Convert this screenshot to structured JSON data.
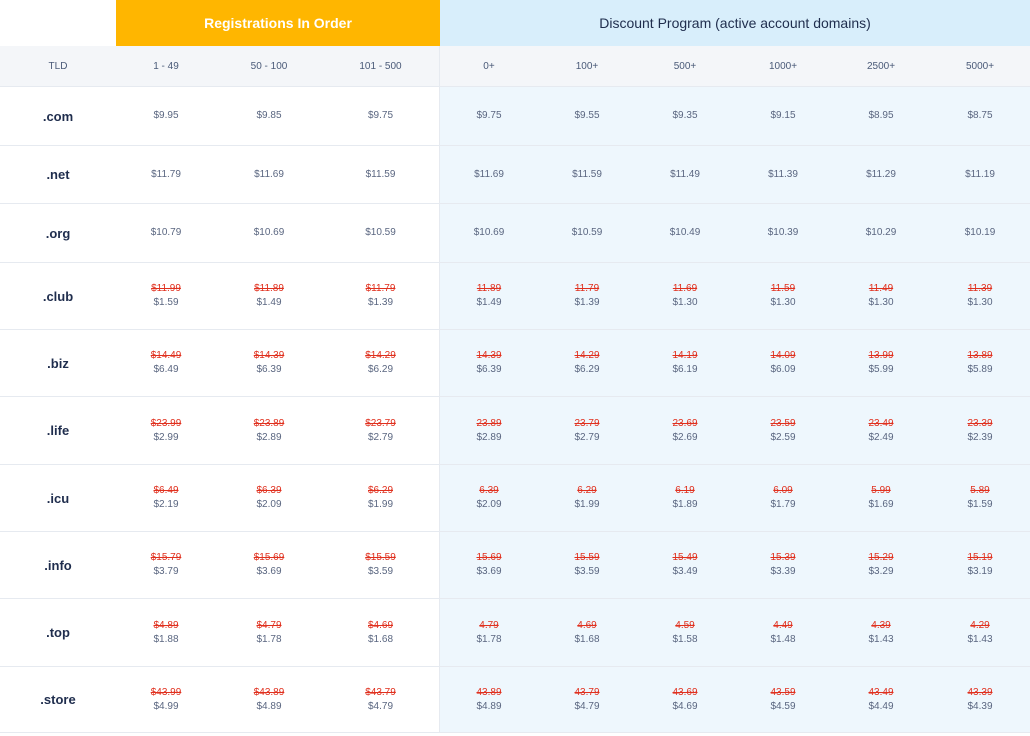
{
  "header": {
    "registrations_label": "Registrations In Order",
    "discount_label": "Discount Program (active account domains)"
  },
  "columns": [
    "TLD",
    "1 - 49",
    "50 - 100",
    "101 - 500",
    "0+",
    "100+",
    "500+",
    "1000+",
    "2500+",
    "5000+"
  ],
  "rows": [
    {
      "tld": ".com",
      "h": 59,
      "prices": [
        {
          "new": "$9.95"
        },
        {
          "new": "$9.85"
        },
        {
          "new": "$9.75"
        },
        {
          "new": "$9.75"
        },
        {
          "new": "$9.55"
        },
        {
          "new": "$9.35"
        },
        {
          "new": "$9.15"
        },
        {
          "new": "$8.95"
        },
        {
          "new": "$8.75"
        }
      ]
    },
    {
      "tld": ".net",
      "h": 58,
      "prices": [
        {
          "new": "$11.79"
        },
        {
          "new": "$11.69"
        },
        {
          "new": "$11.59"
        },
        {
          "new": "$11.69"
        },
        {
          "new": "$11.59"
        },
        {
          "new": "$11.49"
        },
        {
          "new": "$11.39"
        },
        {
          "new": "$11.29"
        },
        {
          "new": "$11.19"
        }
      ]
    },
    {
      "tld": ".org",
      "h": 59,
      "prices": [
        {
          "new": "$10.79"
        },
        {
          "new": "$10.69"
        },
        {
          "new": "$10.59"
        },
        {
          "new": "$10.69"
        },
        {
          "new": "$10.59"
        },
        {
          "new": "$10.49"
        },
        {
          "new": "$10.39"
        },
        {
          "new": "$10.29"
        },
        {
          "new": "$10.19"
        }
      ]
    },
    {
      "tld": ".club",
      "h": 67,
      "prices": [
        {
          "old": "$11.99",
          "new": "$1.59"
        },
        {
          "old": "$11.89",
          "new": "$1.49"
        },
        {
          "old": "$11.79",
          "new": "$1.39"
        },
        {
          "old": "11.89",
          "new": "$1.49"
        },
        {
          "old": "11.79",
          "new": "$1.39"
        },
        {
          "old": "11.69",
          "new": "$1.30"
        },
        {
          "old": "11.59",
          "new": "$1.30"
        },
        {
          "old": "11.49",
          "new": "$1.30"
        },
        {
          "old": "11.39",
          "new": "$1.30"
        }
      ]
    },
    {
      "tld": ".biz",
      "h": 67,
      "prices": [
        {
          "old": "$14.49",
          "new": "$6.49"
        },
        {
          "old": "$14.39",
          "new": "$6.39"
        },
        {
          "old": "$14.29",
          "new": "$6.29"
        },
        {
          "old": "14.39",
          "new": "$6.39"
        },
        {
          "old": "14.29",
          "new": "$6.29"
        },
        {
          "old": "14.19",
          "new": "$6.19"
        },
        {
          "old": "14.09",
          "new": "$6.09"
        },
        {
          "old": "13.99",
          "new": "$5.99"
        },
        {
          "old": "13.89",
          "new": "$5.89"
        }
      ]
    },
    {
      "tld": ".life",
      "h": 68,
      "prices": [
        {
          "old": "$23.99",
          "new": "$2.99"
        },
        {
          "old": "$23.89",
          "new": "$2.89"
        },
        {
          "old": "$23.79",
          "new": "$2.79"
        },
        {
          "old": "23.89",
          "new": "$2.89"
        },
        {
          "old": "23.79",
          "new": "$2.79"
        },
        {
          "old": "23.69",
          "new": "$2.69"
        },
        {
          "old": "23.59",
          "new": "$2.59"
        },
        {
          "old": "23.49",
          "new": "$2.49"
        },
        {
          "old": "23.39",
          "new": "$2.39"
        }
      ]
    },
    {
      "tld": ".icu",
      "h": 67,
      "prices": [
        {
          "old": "$6.49",
          "new": "$2.19"
        },
        {
          "old": "$6.39",
          "new": "$2.09"
        },
        {
          "old": "$6.29",
          "new": "$1.99"
        },
        {
          "old": "6.39",
          "new": "$2.09"
        },
        {
          "old": "6.29",
          "new": "$1.99"
        },
        {
          "old": "6.19",
          "new": "$1.89"
        },
        {
          "old": "6.09",
          "new": "$1.79"
        },
        {
          "old": "5.99",
          "new": "$1.69"
        },
        {
          "old": "5.89",
          "new": "$1.59"
        }
      ]
    },
    {
      "tld": ".info",
      "h": 67,
      "prices": [
        {
          "old": "$15.79",
          "new": "$3.79"
        },
        {
          "old": "$15.69",
          "new": "$3.69"
        },
        {
          "old": "$15.59",
          "new": "$3.59"
        },
        {
          "old": "15.69",
          "new": "$3.69"
        },
        {
          "old": "15.59",
          "new": "$3.59"
        },
        {
          "old": "15.49",
          "new": "$3.49"
        },
        {
          "old": "15.39",
          "new": "$3.39"
        },
        {
          "old": "15.29",
          "new": "$3.29"
        },
        {
          "old": "15.19",
          "new": "$3.19"
        }
      ]
    },
    {
      "tld": ".top",
      "h": 68,
      "prices": [
        {
          "old": "$4.89",
          "new": "$1.88"
        },
        {
          "old": "$4.79",
          "new": "$1.78"
        },
        {
          "old": "$4.69",
          "new": "$1.68"
        },
        {
          "old": "4.79",
          "new": "$1.78"
        },
        {
          "old": "4.69",
          "new": "$1.68"
        },
        {
          "old": "4.59",
          "new": "$1.58"
        },
        {
          "old": "4.49",
          "new": "$1.48"
        },
        {
          "old": "4.39",
          "new": "$1.43"
        },
        {
          "old": "4.29",
          "new": "$1.43"
        }
      ]
    },
    {
      "tld": ".store",
      "h": 66,
      "prices": [
        {
          "old": "$43.99",
          "new": "$4.99"
        },
        {
          "old": "$43.89",
          "new": "$4.89"
        },
        {
          "old": "$43.79",
          "new": "$4.79"
        },
        {
          "old": "43.89",
          "new": "$4.89"
        },
        {
          "old": "43.79",
          "new": "$4.79"
        },
        {
          "old": "43.69",
          "new": "$4.69"
        },
        {
          "old": "43.59",
          "new": "$4.59"
        },
        {
          "old": "43.49",
          "new": "$4.49"
        },
        {
          "old": "43.39",
          "new": "$4.39"
        }
      ]
    }
  ]
}
